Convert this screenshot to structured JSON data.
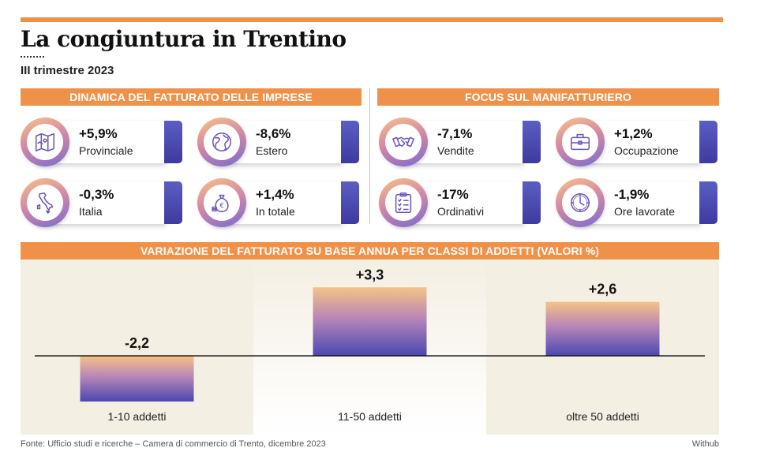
{
  "header": {
    "title": "La congiuntura in Trentino",
    "subtitle": "III trimestre 2023"
  },
  "colors": {
    "accent": "#f0914a",
    "card_tab": "#4b47b0",
    "panel_bg": "#f4efe3",
    "bar_top": "#f6c285",
    "bar_bottom": "#4a48b0"
  },
  "left_panel": {
    "title": "DINAMICA DEL FATTURATO DELLE IMPRESE",
    "cards": [
      {
        "icon": "map-icon",
        "value": "+5,9%",
        "label": "Provinciale"
      },
      {
        "icon": "globe-icon",
        "value": "-8,6%",
        "label": "Estero"
      },
      {
        "icon": "italy-icon",
        "value": "-0,3%",
        "label": "Italia"
      },
      {
        "icon": "money-bag-icon",
        "value": "+1,4%",
        "label": "In totale"
      }
    ]
  },
  "right_panel": {
    "title": "FOCUS SUL MANIFATTURIERO",
    "cards": [
      {
        "icon": "handshake-icon",
        "value": "-7,1%",
        "label": "Vendite"
      },
      {
        "icon": "briefcase-icon",
        "value": "+1,2%",
        "label": "Occupazione"
      },
      {
        "icon": "clipboard-icon",
        "value": "-17%",
        "label": "Ordinativi"
      },
      {
        "icon": "clock-icon",
        "value": "-1,9%",
        "label": "Ore lavorate"
      }
    ]
  },
  "chart_data": {
    "type": "bar",
    "title": "VARIAZIONE DEL FATTURATO SU BASE ANNUA PER CLASSI DI ADDETTI (VALORI %)",
    "categories": [
      "1-10 addetti",
      "11-50 addetti",
      "oltre 50 addetti"
    ],
    "values": [
      -2.2,
      3.3,
      2.6
    ],
    "value_labels": [
      "-2,2",
      "+3,3",
      "+2,6"
    ],
    "ylim": [
      -2.5,
      3.5
    ],
    "grid": false,
    "legend": "none",
    "alternating_background": true
  },
  "footer": {
    "source": "Fonte: Ufficio studi e ricerche – Camera di commercio di Trento, dicembre 2023",
    "brand": "Withub"
  }
}
